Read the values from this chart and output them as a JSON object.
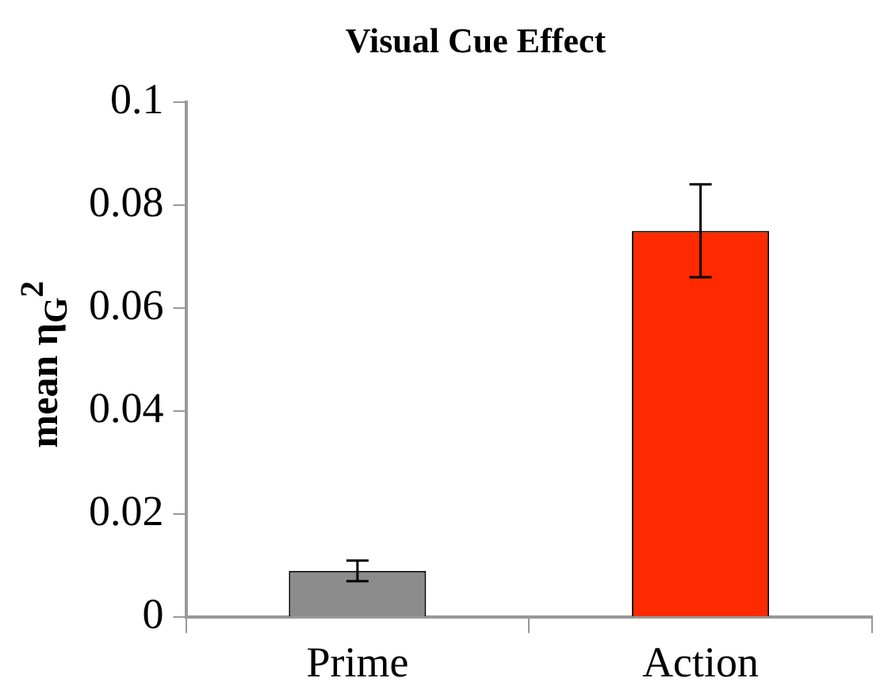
{
  "chart_data": {
    "type": "bar",
    "title": "Visual Cue Effect",
    "ylabel": "mean η$_{G}$$^{2}$",
    "categories": [
      "Prime",
      "Action"
    ],
    "values": [
      0.009,
      0.075
    ],
    "colors": [
      "#8c8c8c",
      "#ff2a00"
    ],
    "errors": [
      [
        0.007,
        0.011
      ],
      [
        0.066,
        0.084
      ]
    ],
    "ylim": [
      0,
      0.1
    ],
    "yticks": [
      0,
      0.02,
      0.04,
      0.06,
      0.08,
      0.1
    ]
  }
}
